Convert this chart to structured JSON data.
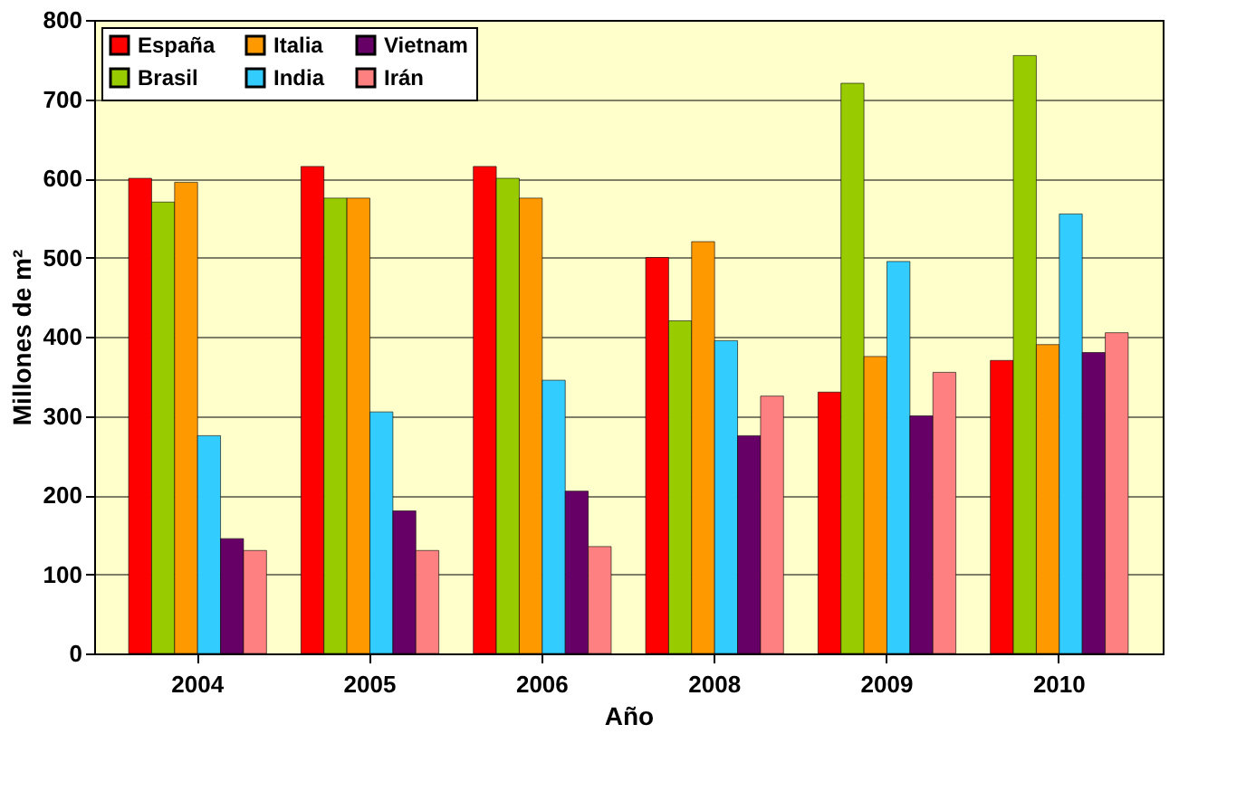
{
  "chart_data": {
    "type": "bar",
    "xlabel": "Año",
    "ylabel": "Millones de m²",
    "categories": [
      "2004",
      "2005",
      "2006",
      "2008",
      "2009",
      "2010"
    ],
    "series": [
      {
        "name": "España",
        "color": "#ff0000",
        "values": [
          600,
          615,
          615,
          500,
          330,
          370
        ]
      },
      {
        "name": "Brasil",
        "color": "#99cc00",
        "values": [
          570,
          575,
          600,
          420,
          720,
          755
        ]
      },
      {
        "name": "Italia",
        "color": "#ff9900",
        "values": [
          595,
          575,
          575,
          520,
          375,
          390
        ]
      },
      {
        "name": "India",
        "color": "#33ccff",
        "values": [
          275,
          305,
          345,
          395,
          495,
          555
        ]
      },
      {
        "name": "Vietnam",
        "color": "#660066",
        "values": [
          145,
          180,
          205,
          275,
          300,
          380
        ]
      },
      {
        "name": "Irán",
        "color": "#ff8080",
        "values": [
          130,
          130,
          135,
          325,
          355,
          405
        ]
      }
    ],
    "ylim": [
      0,
      800
    ],
    "yticks": [
      0,
      100,
      200,
      300,
      400,
      500,
      600,
      700,
      800
    ],
    "grid": "y",
    "legend": "top left"
  }
}
